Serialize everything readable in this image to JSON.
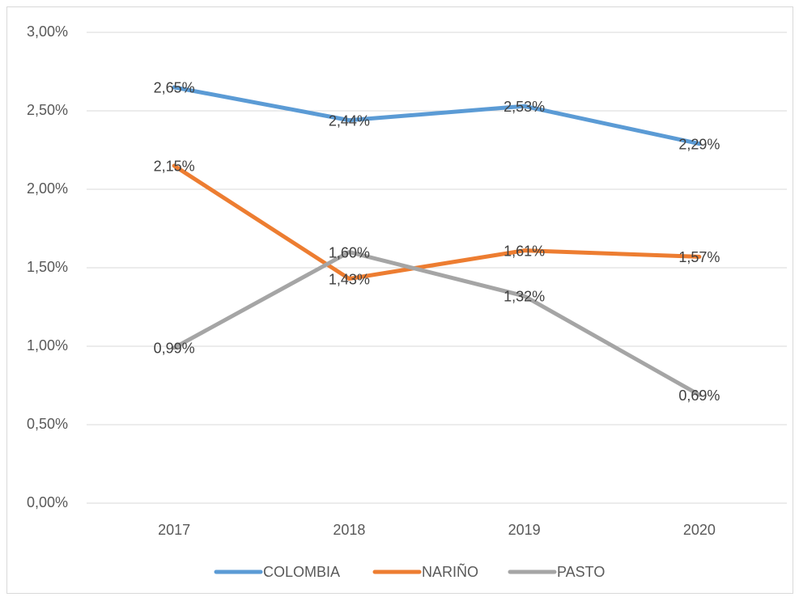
{
  "chart_data": {
    "type": "line",
    "categories": [
      "2017",
      "2018",
      "2019",
      "2020"
    ],
    "series": [
      {
        "name": "COLOMBIA",
        "color": "#5b9bd5",
        "values": [
          2.65,
          2.44,
          2.53,
          2.29
        ],
        "value_labels": [
          "2,65%",
          "2,44%",
          "2,53%",
          "2,29%"
        ]
      },
      {
        "name": "NARIÑO",
        "color": "#ed7d31",
        "values": [
          2.15,
          1.43,
          1.61,
          1.57
        ],
        "value_labels": [
          "2,15%",
          "1,43%",
          "1,61%",
          "1,57%"
        ]
      },
      {
        "name": "PASTO",
        "color": "#a5a5a5",
        "values": [
          0.99,
          1.6,
          1.32,
          0.69
        ],
        "value_labels": [
          "0,99%",
          "1,60%",
          "1,32%",
          "0,69%"
        ]
      }
    ],
    "ylim": [
      0,
      3
    ],
    "yticks": [
      {
        "value": 0,
        "label": "0,00%"
      },
      {
        "value": 0.5,
        "label": "0,50%"
      },
      {
        "value": 1,
        "label": "1,00%"
      },
      {
        "value": 1.5,
        "label": "1,50%"
      },
      {
        "value": 2,
        "label": "2,00%"
      },
      {
        "value": 2.5,
        "label": "2,50%"
      },
      {
        "value": 3,
        "label": "3,00%"
      }
    ],
    "grid": true,
    "legend": "bottom"
  }
}
